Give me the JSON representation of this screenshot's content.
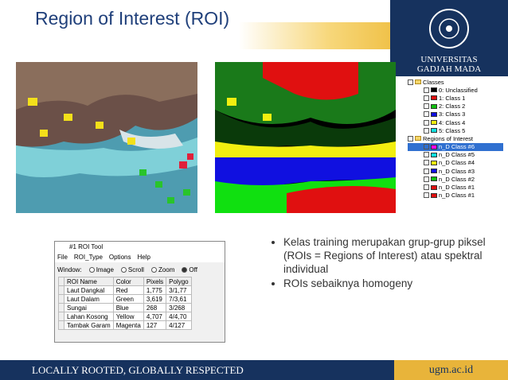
{
  "header": {
    "title": "Region of Interest (ROI)",
    "logo_line1": "UNIVERSITAS",
    "logo_line2": "GADJAH MADA"
  },
  "tree": {
    "classes": {
      "label": "Classes",
      "items": [
        "0: Unclassified",
        "1: Class 1",
        "2: Class 2",
        "3: Class 3",
        "4: Class 4",
        "5: Class 5"
      ]
    },
    "rois": {
      "label": "Regions of Interest",
      "items": [
        "n_D Class #6",
        "n_D Class #5",
        "n_D Class #4",
        "n_D Class #3",
        "n_D Class #2",
        "n_D Class #1",
        "n_D Class #1"
      ]
    }
  },
  "roi_tool": {
    "title": "#1 ROI Tool",
    "menu": [
      "File",
      "ROI_Type",
      "Options",
      "Help"
    ],
    "window_label": "Window:",
    "window_options": [
      "Image",
      "Scroll",
      "Zoom",
      "Off"
    ],
    "columns": [
      "ROI Name",
      "Color",
      "Pixels",
      "Polygo"
    ],
    "rows": [
      [
        "Laut Dangkal",
        "Red",
        "1,775",
        "3/1,77"
      ],
      [
        "Laut Dalam",
        "Green",
        "3,619",
        "7/3,61"
      ],
      [
        "Sungai",
        "Blue",
        "268",
        "3/268"
      ],
      [
        "Lahan Kosong",
        "Yellow",
        "4,707",
        "4/4,70"
      ],
      [
        "Tambak Garam",
        "Magenta",
        "127",
        "4/127"
      ]
    ]
  },
  "bullets": [
    "Kelas training merupakan grup-grup piksel (ROIs = Regions of Interest) atau spektral individual",
    "ROIs sebaiknya homogeny"
  ],
  "footer": {
    "motto": "LOCALLY ROOTED, GLOBALLY RESPECTED",
    "url": "ugm.ac.id"
  }
}
